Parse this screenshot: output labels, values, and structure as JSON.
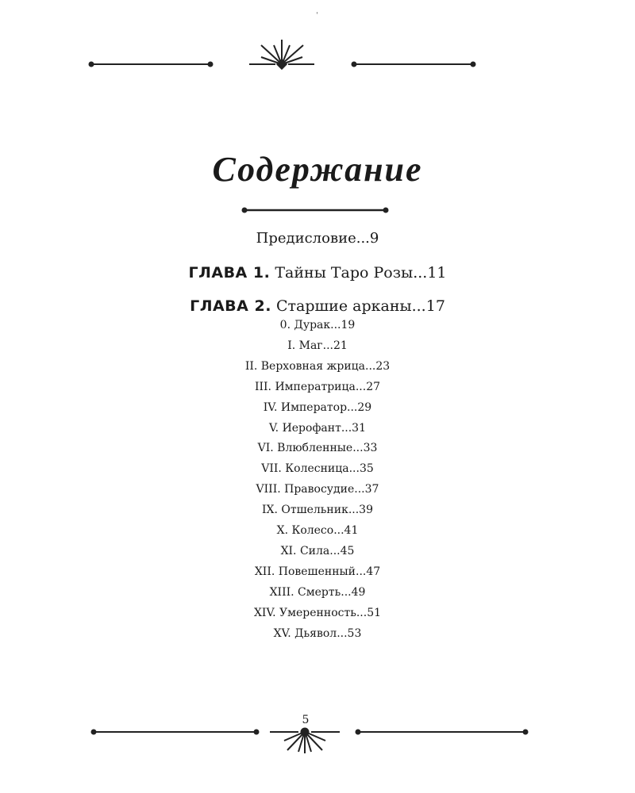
{
  "title": "Содержание",
  "entries": [
    {
      "label": "Предисловие...9"
    },
    {
      "prefix": "ГЛАВА 1.",
      "label": " Тайны Таро Розы...11"
    },
    {
      "prefix": "ГЛАВА 2.",
      "label": " Старшие арканы...17"
    }
  ],
  "arcana": [
    "0. Дурак...19",
    "I. Маг...21",
    "II. Верховная жрица...23",
    "III. Императрица...27",
    "IV. Император...29",
    "V. Иерофант...31",
    "VI. Влюбленные...33",
    "VII. Колесница...35",
    "VIII. Правосудие...37",
    "IX. Отшельник...39",
    "X. Колесо...41",
    "XI. Сила...45",
    "XII. Повешенный...47",
    "XIII. Смерть...49",
    "XIV. Умеренность...51",
    "XV. Дьявол...53"
  ],
  "page_number": "5",
  "ornament_color": "#1a1a1a"
}
